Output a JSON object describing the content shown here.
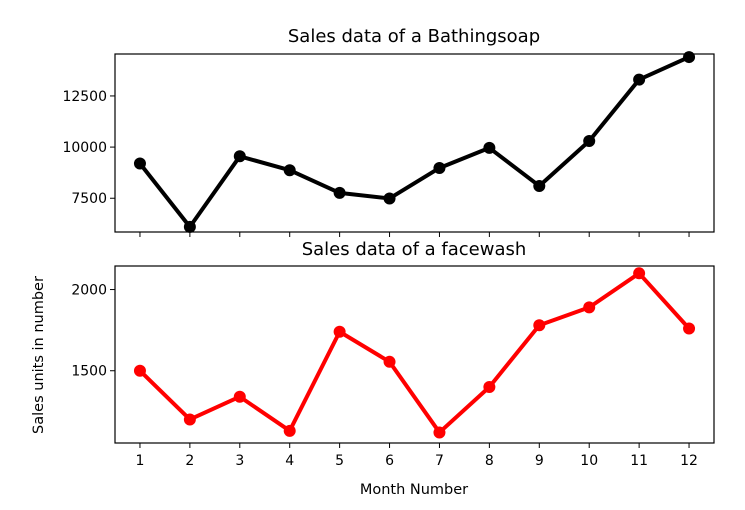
{
  "chart_data": [
    {
      "type": "line",
      "title": "Sales data of  a Bathingsoap",
      "xlabel": "",
      "ylabel": "",
      "x": [
        1,
        2,
        3,
        4,
        5,
        6,
        7,
        8,
        9,
        10,
        11,
        12
      ],
      "xlim": [
        0.5,
        12.5
      ],
      "ylim": [
        5850,
        14550
      ],
      "yticks": [
        7500,
        10000,
        12500
      ],
      "xtick_labels_visible": false,
      "grid": false,
      "series": [
        {
          "color": "#000000",
          "marker": "circle",
          "values": [
            9200,
            6100,
            9550,
            8870,
            7760,
            7490,
            8980,
            9960,
            8100,
            10300,
            13300,
            14400
          ]
        }
      ]
    },
    {
      "type": "line",
      "title": "Sales data of  a facewash",
      "xlabel": "Month Number",
      "ylabel": "Sales units in number",
      "x": [
        1,
        2,
        3,
        4,
        5,
        6,
        7,
        8,
        9,
        10,
        11,
        12
      ],
      "xlim": [
        0.5,
        12.5
      ],
      "ylim": [
        1055,
        2145
      ],
      "yticks": [
        1500,
        2000
      ],
      "xticks": [
        1,
        2,
        3,
        4,
        5,
        6,
        7,
        8,
        9,
        10,
        11,
        12
      ],
      "grid": false,
      "series": [
        {
          "color": "#ff0000",
          "marker": "circle",
          "values": [
            1500,
            1200,
            1340,
            1130,
            1740,
            1555,
            1120,
            1400,
            1780,
            1890,
            2100,
            1760
          ]
        }
      ]
    }
  ]
}
